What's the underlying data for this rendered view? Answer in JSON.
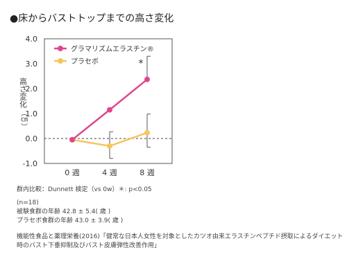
{
  "header": {
    "title": "●床からバストトップまでの高さ変化"
  },
  "chart_data": {
    "type": "line",
    "categories": [
      "0 週",
      "4 週",
      "8 週"
    ],
    "ylabel_upper": "高さ変化",
    "ylabel_unit": "（㎝）",
    "ylim": [
      -1.0,
      4.0
    ],
    "yticks": [
      "4.0",
      "3.0",
      "2.0",
      "1.0",
      "0.0",
      "-1.0"
    ],
    "ytick_values": [
      4.0,
      3.0,
      2.0,
      1.0,
      0.0,
      -1.0
    ],
    "baseline": 0.0,
    "legend_position": "top-left",
    "series": [
      {
        "name": "グラマリズムエラスチン®",
        "color": "#e0468e",
        "values": [
          -0.05,
          1.15,
          2.37
        ],
        "error_upper": [
          null,
          null,
          3.3
        ],
        "error_lower": [
          null,
          null,
          null
        ]
      },
      {
        "name": "プラセボ",
        "color": "#f7c55a",
        "values": [
          -0.05,
          -0.3,
          0.23
        ],
        "error_upper": [
          null,
          0.27,
          0.98
        ],
        "error_lower": [
          null,
          -0.8,
          -0.35
        ]
      }
    ],
    "annotations": [
      {
        "text": "*",
        "series": 0,
        "category": 2
      }
    ]
  },
  "notes": {
    "stats": "群内比較：Dunnett 検定（vs 0w）＊: p<0.05",
    "n": "(n=18)",
    "age_test": "被験食群の年齢 42.8 ± 5.4( 歳 )",
    "age_placebo": "プラセボ食群の年齢 43.0 ± 3.9( 歳 )",
    "source": "機能性食品と薬理栄養(2016)「健常な日本人女性を対象としたカツオ由来エラスチンペプチド摂取によるダイエット時のバスト下垂抑制及びバスト皮膚弾性改善作用」"
  }
}
